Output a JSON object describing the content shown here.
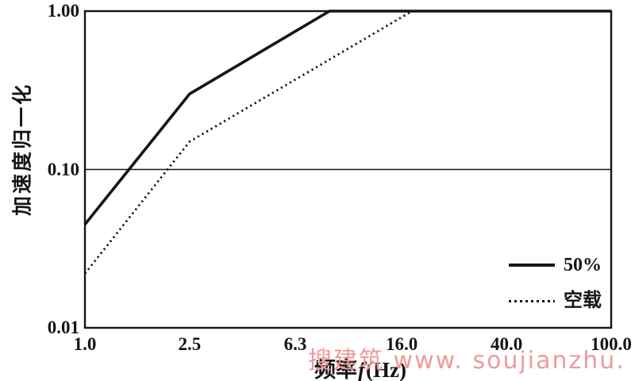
{
  "watermark": {
    "text": "搜建筑 www. soujianzhu. cn",
    "color": "#f09a9a"
  },
  "chart_data": {
    "type": "line",
    "title": "",
    "xlabel": "频率f(Hz)",
    "xlabel_parts": {
      "prefix": "频率",
      "variable": "f",
      "suffix": "(Hz)"
    },
    "ylabel": "加速度归一化",
    "x_scale": "log",
    "y_scale": "log",
    "xlim": [
      1.0,
      100.0
    ],
    "ylim": [
      0.01,
      1.0
    ],
    "grid": "off",
    "legend_position": "inside-bottom-right",
    "x_ticks": [
      {
        "value": 1.0,
        "label": "1.0"
      },
      {
        "value": 2.5,
        "label": "2.5"
      },
      {
        "value": 6.3,
        "label": "6.3"
      },
      {
        "value": 16.0,
        "label": "16.0"
      },
      {
        "value": 40.0,
        "label": "40.0"
      },
      {
        "value": 100.0,
        "label": "100.0"
      }
    ],
    "y_ticks": [
      {
        "value": 1.0,
        "label": "1.00"
      },
      {
        "value": 0.1,
        "label": "0.10"
      },
      {
        "value": 0.01,
        "label": "0.01"
      }
    ],
    "reference_line_y": 0.1,
    "series": [
      {
        "name": "50%",
        "style": "solid",
        "color": "#151515",
        "points": [
          [
            1.0,
            0.045
          ],
          [
            2.5,
            0.3
          ],
          [
            8.5,
            1.0
          ],
          [
            100.0,
            1.0
          ]
        ]
      },
      {
        "name": "空载",
        "style": "dotted",
        "color": "#151515",
        "points": [
          [
            1.0,
            0.022
          ],
          [
            2.5,
            0.15
          ],
          [
            17.5,
            1.0
          ],
          [
            100.0,
            1.0
          ]
        ]
      }
    ]
  }
}
